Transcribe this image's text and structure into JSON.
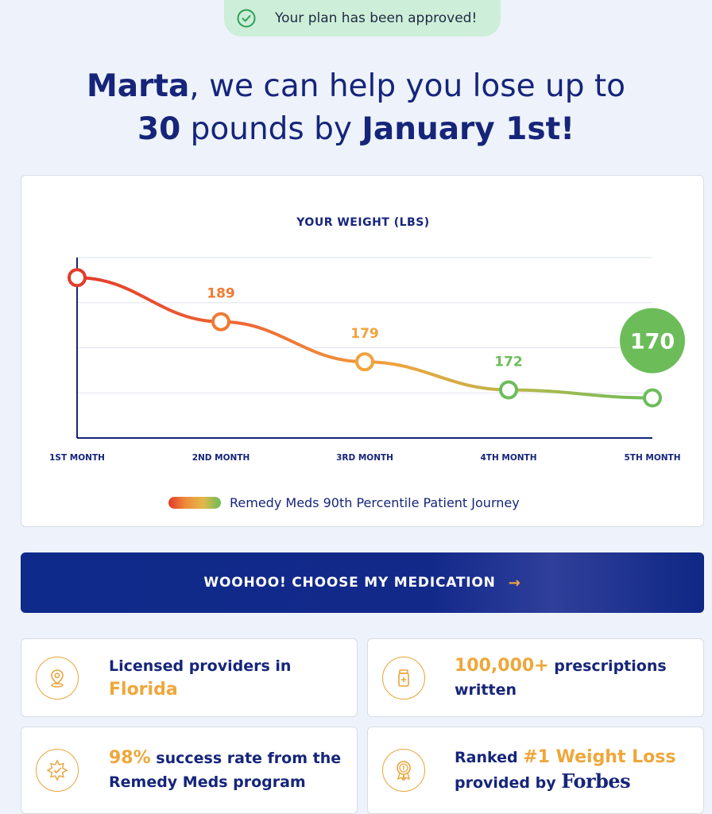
{
  "banner": {
    "text": "Your plan has been approved!",
    "icon": "check-circle-icon"
  },
  "headline": {
    "name": "Marta",
    "part1": ", we can help you lose up to",
    "amount": "30",
    "part2": " pounds by ",
    "date": "January 1st!"
  },
  "chart_data": {
    "type": "line",
    "title": "YOUR WEIGHT (LBS)",
    "categories": [
      "1ST MONTH",
      "2ND MONTH",
      "3RD MONTH",
      "4TH MONTH",
      "5TH MONTH"
    ],
    "series": [
      {
        "name": "Remedy Meds 90th Percentile Patient Journey",
        "values": [
          200,
          189,
          179,
          172,
          170
        ]
      }
    ],
    "point_labels": [
      "",
      "189",
      "179",
      "172",
      "170"
    ],
    "ylim": [
      160,
      205
    ],
    "grid": true,
    "colors": [
      "#e33b2b",
      "#ef7b32",
      "#f0a33e",
      "#6cbd5a",
      "#6cbd5a"
    ],
    "highlight_color": "#6cbd5a",
    "axis_color": "#16257a"
  },
  "cta": {
    "label": "WOOHOO! CHOOSE MY MEDICATION",
    "arrow": "→"
  },
  "features": [
    {
      "icon": "location-pin-icon",
      "pre": "Licensed providers in ",
      "hl": "Florida",
      "post": ""
    },
    {
      "icon": "prescription-bottle-icon",
      "pre": "",
      "hl": "100,000+",
      "post": " prescriptions written"
    },
    {
      "icon": "badge-star-icon",
      "pre": "",
      "hl": "98%",
      "post": " success rate from the Remedy Meds program"
    },
    {
      "icon": "award-ribbon-icon",
      "pre": "Ranked ",
      "hl": "#1 Weight Loss",
      "post": "provided by ",
      "brand": "Forbes"
    }
  ],
  "colors": {
    "accent": "#eea73a",
    "navy": "#16257a",
    "success": "#6cbd5a",
    "background": "#eef3fb"
  }
}
